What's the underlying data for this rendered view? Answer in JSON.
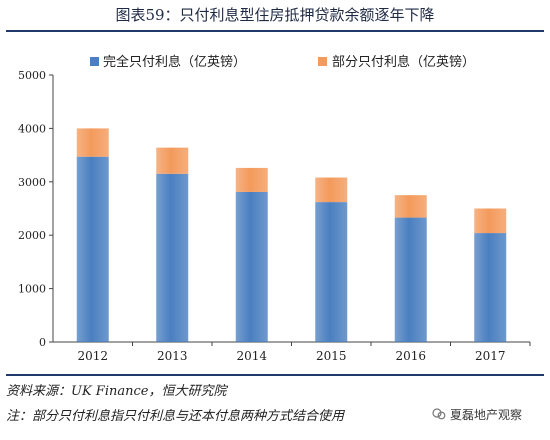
{
  "figure": {
    "title": "图表59：只付利息型住房抵押贷款余额逐年下降",
    "source": "资料来源：UK Finance，恒大研究院",
    "footnote": "注：部分只付利息指只付利息与还本付息两种方式结合使用",
    "watermark": "夏磊地产观察"
  },
  "chart_data": {
    "type": "bar",
    "stacked": true,
    "categories": [
      "2012",
      "2013",
      "2014",
      "2015",
      "2016",
      "2017"
    ],
    "series": [
      {
        "name": "完全只付利息（亿英镑）",
        "color": "#4a7fc0",
        "values": [
          3470,
          3150,
          2810,
          2620,
          2330,
          2040
        ]
      },
      {
        "name": "部分只付利息（亿英镑）",
        "color": "#f39a5c",
        "values": [
          530,
          490,
          450,
          460,
          420,
          460
        ]
      }
    ],
    "yticks": [
      0,
      1000,
      2000,
      3000,
      4000,
      5000
    ],
    "ylim": [
      0,
      5000
    ],
    "legend_position": "top",
    "grid": false
  }
}
